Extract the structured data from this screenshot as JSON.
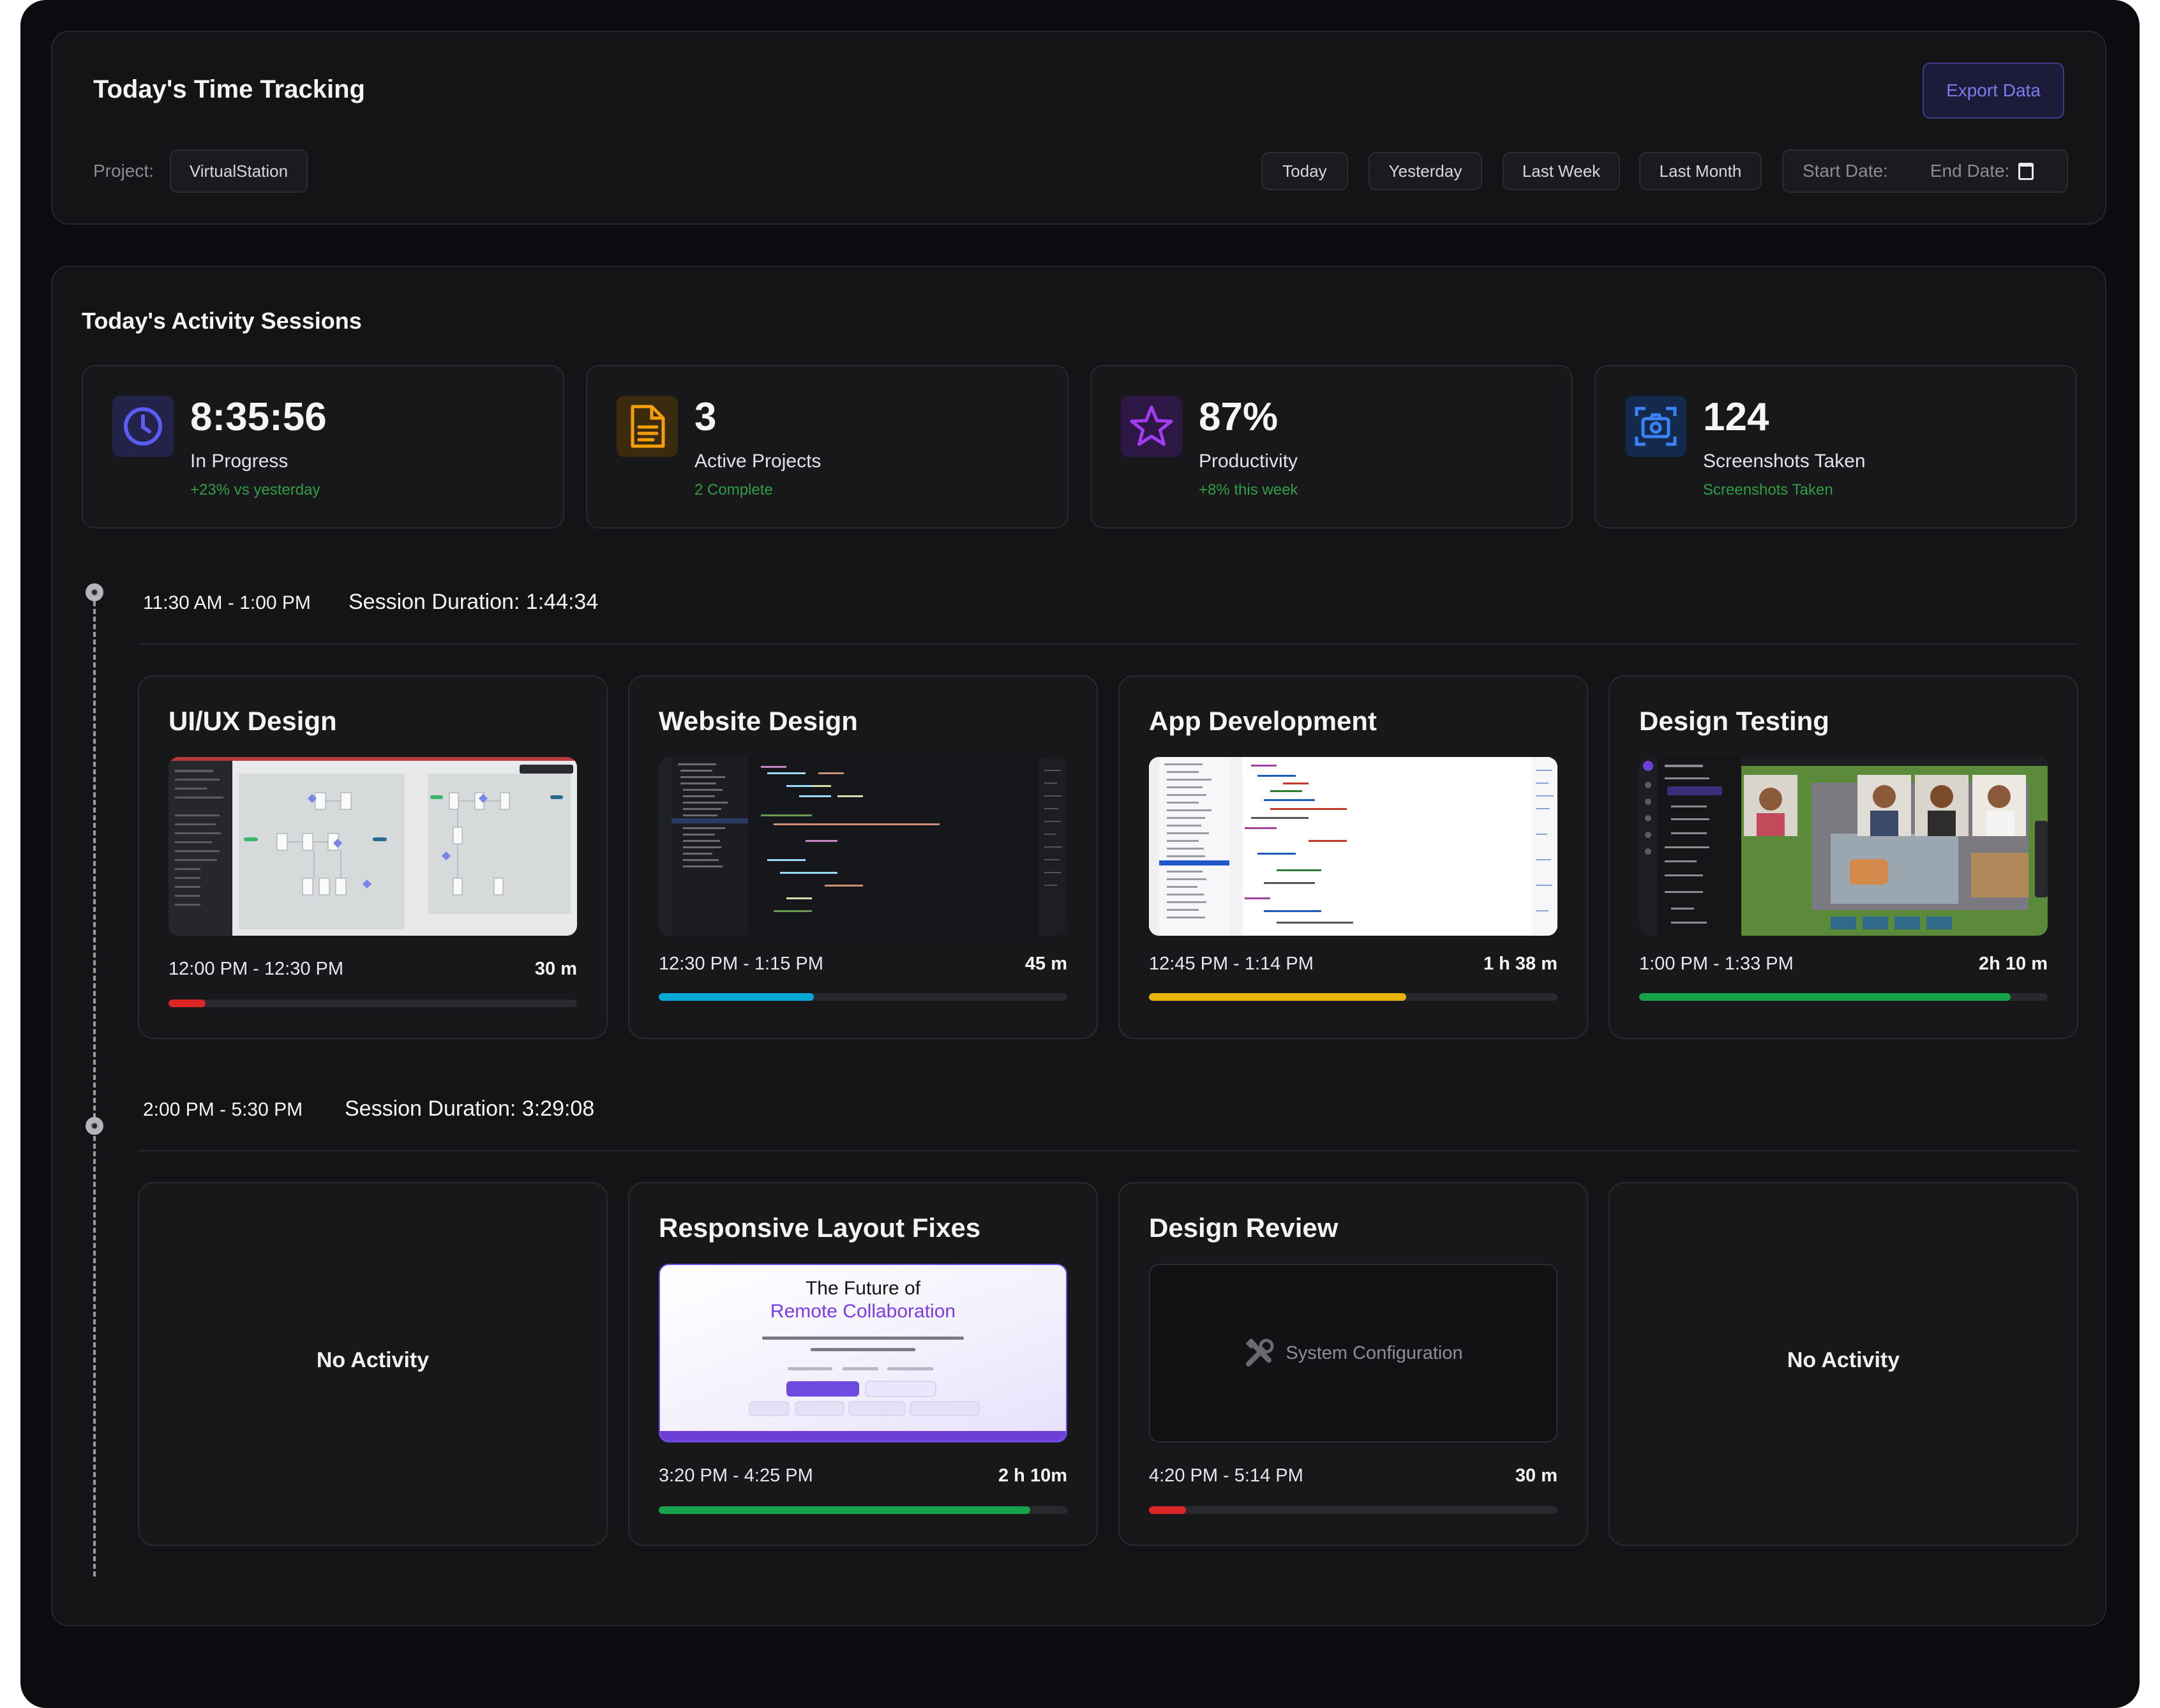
{
  "header": {
    "title": "Today's Time Tracking",
    "export_label": "Export Data",
    "project_label": "Project:",
    "project_value": "VirtualStation",
    "range_buttons": [
      "Today",
      "Yesterday",
      "Last Week",
      "Last Month"
    ],
    "start_date_label": "Start Date:",
    "end_date_label": "End Date:"
  },
  "sessions": {
    "title": "Today's  Activity  Sessions",
    "stats": [
      {
        "value": "8:35:56",
        "label": "In Progress",
        "sub": "+23% vs yesterday",
        "icon": "clock-icon",
        "color": "#4f46e5"
      },
      {
        "value": "3",
        "label": "Active Projects",
        "sub": "2 Complete",
        "icon": "document-icon",
        "color": "#f59e0b"
      },
      {
        "value": "87%",
        "label": "Productivity",
        "sub": "+8% this week",
        "icon": "star-icon",
        "color": "#9333ea"
      },
      {
        "value": "124",
        "label": "Screenshots Taken",
        "sub": "Screenshots Taken",
        "icon": "camera-icon",
        "color": "#3b82f6"
      }
    ],
    "session1": {
      "time": "11:30 AM - 1:00 PM",
      "duration": "Session Duration: 1:44:34",
      "activities": [
        {
          "title": "UI/UX Design",
          "time": "12:00 PM - 12:30 PM",
          "duration": "30 m",
          "progress": 0.09,
          "color": "#dc2626"
        },
        {
          "title": "Website Design",
          "time": "12:30 PM - 1:15 PM",
          "duration": "45 m",
          "progress": 0.38,
          "color": "#06a8d8"
        },
        {
          "title": "App Development",
          "time": "12:45 PM - 1:14 PM",
          "duration": "1 h 38 m",
          "progress": 0.63,
          "color": "#eab308"
        },
        {
          "title": "Design Testing",
          "time": "1:00 PM - 1:33 PM",
          "duration": "2h 10 m",
          "progress": 0.91,
          "color": "#16a34a"
        }
      ]
    },
    "session2": {
      "time": "2:00 PM - 5:30 PM",
      "duration": "Session Duration: 3:29:08",
      "no_activity_label": "No Activity",
      "activities": [
        {
          "title": "Responsive Layout Fixes",
          "time": "3:20 PM - 4:25 PM",
          "duration": "2 h 10m",
          "progress": 0.91,
          "color": "#16a34a"
        },
        {
          "title": "Design Review",
          "time": "4:20 PM - 5:14 PM",
          "duration": "30 m",
          "progress": 0.09,
          "color": "#dc2626"
        }
      ],
      "landing_preview": {
        "line1": "The Future of",
        "line2": "Remote Collaboration"
      },
      "system_config_label": "System Configuration"
    }
  }
}
